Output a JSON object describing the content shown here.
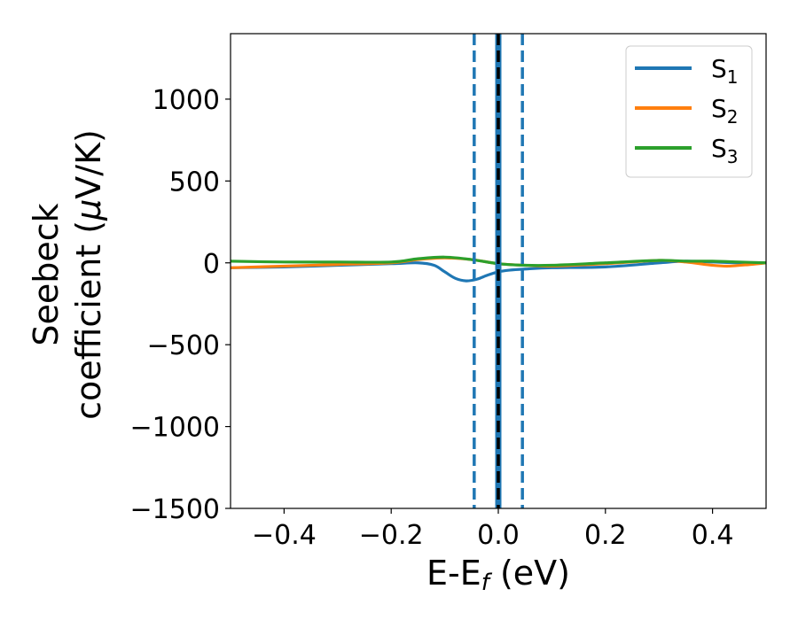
{
  "chart_data": {
    "type": "line",
    "xlabel": "E-E",
    "xlabel_sub": "f",
    "xlabel_unit": " (eV)",
    "ylabel_line1": "Seebeck",
    "ylabel_line2_prefix": "coefficient  (",
    "ylabel_mu": "μ",
    "ylabel_line2_suffix": "V/K)",
    "xlim": [
      -0.5,
      0.5
    ],
    "ylim": [
      -1500,
      1400
    ],
    "x_ticks": [
      -0.4,
      -0.2,
      0.0,
      0.2,
      0.4
    ],
    "x_tick_labels": [
      "−0.4",
      "−0.2",
      "0.0",
      "0.2",
      "0.4"
    ],
    "y_ticks": [
      -1500,
      -1000,
      -500,
      0,
      500,
      1000
    ],
    "y_tick_labels": [
      "−1500",
      "−1000",
      "−500",
      "0",
      "500",
      "1000"
    ],
    "legend_position": "top-right",
    "series": [
      {
        "name": "S",
        "name_sub": "1",
        "color": "#1f77b4",
        "x": [
          -0.5,
          -0.4,
          -0.3,
          -0.2,
          -0.15,
          -0.12,
          -0.1,
          -0.08,
          -0.06,
          -0.04,
          -0.02,
          0.0,
          0.02,
          0.05,
          0.1,
          0.2,
          0.3,
          0.35,
          0.4,
          0.45,
          0.5
        ],
        "y": [
          -30,
          -25,
          -15,
          -5,
          0,
          -15,
          -55,
          -95,
          -110,
          -100,
          -75,
          -55,
          -45,
          -38,
          -30,
          -25,
          0,
          10,
          5,
          0,
          0
        ]
      },
      {
        "name": "S",
        "name_sub": "2",
        "color": "#ff7f0e",
        "x": [
          -0.5,
          -0.4,
          -0.3,
          -0.2,
          -0.15,
          -0.1,
          -0.05,
          0.0,
          0.05,
          0.1,
          0.2,
          0.3,
          0.35,
          0.4,
          0.43,
          0.47,
          0.5
        ],
        "y": [
          -30,
          -20,
          -10,
          0,
          20,
          30,
          20,
          -5,
          -15,
          -20,
          -5,
          15,
          5,
          -15,
          -20,
          -10,
          0
        ]
      },
      {
        "name": "S",
        "name_sub": "3",
        "color": "#2ca02c",
        "x": [
          -0.5,
          -0.4,
          -0.3,
          -0.2,
          -0.15,
          -0.1,
          -0.05,
          0.0,
          0.05,
          0.1,
          0.2,
          0.3,
          0.35,
          0.4,
          0.45,
          0.5
        ],
        "y": [
          10,
          5,
          5,
          5,
          25,
          35,
          20,
          -5,
          -15,
          -15,
          0,
          15,
          10,
          10,
          5,
          0
        ]
      }
    ],
    "vlines": [
      {
        "x": -0.045,
        "color": "#1f77b4",
        "style": "dashed"
      },
      {
        "x": 0.045,
        "color": "#1f77b4",
        "style": "dashed"
      },
      {
        "x": 0.0,
        "color": "#1f77b4",
        "style": "solid-thick"
      },
      {
        "x": 0.0,
        "color": "#000000",
        "style": "dashed"
      }
    ]
  }
}
